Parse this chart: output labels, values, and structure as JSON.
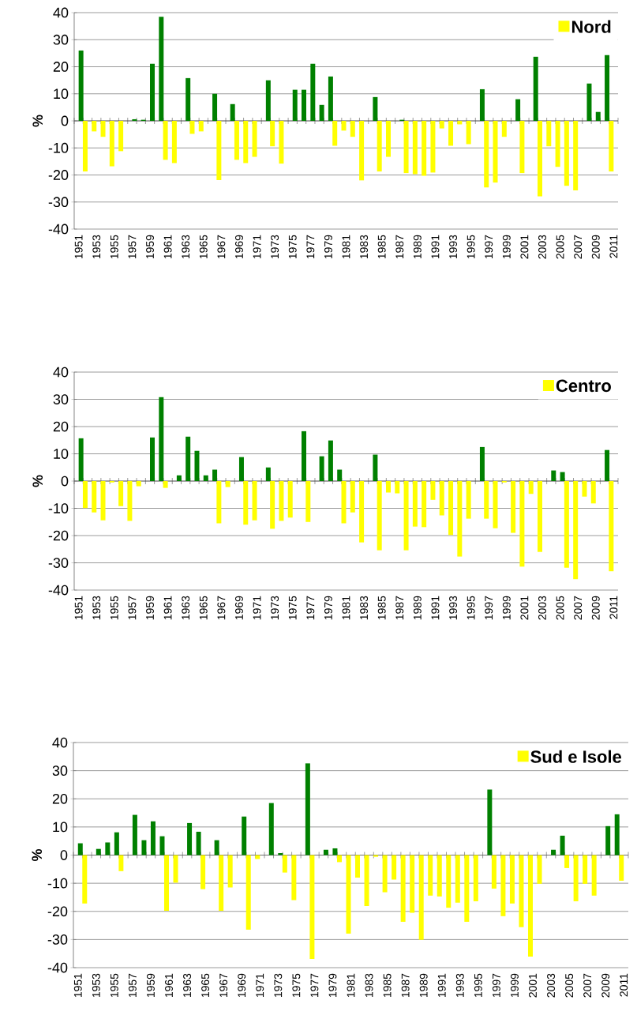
{
  "chart_data": [
    {
      "type": "bar",
      "ylabel": "%",
      "ylim": [
        -40,
        40
      ],
      "yticks": [
        -40,
        -30,
        -20,
        -10,
        0,
        10,
        20,
        30,
        40
      ],
      "grid": "y",
      "legend": "top right",
      "categories": [
        "1951",
        null,
        "1953",
        null,
        "1955",
        null,
        "1957",
        null,
        "1959",
        null,
        "1961",
        null,
        "1963",
        null,
        "1965",
        null,
        "1967",
        null,
        "1969",
        null,
        "1971",
        null,
        "1973",
        null,
        "1975",
        null,
        "1977",
        null,
        "1979",
        null,
        "1981",
        null,
        "1983",
        null,
        "1985",
        null,
        "1987",
        null,
        "1989",
        null,
        "1991",
        null,
        "1993",
        null,
        "1995",
        null,
        "1997",
        null,
        "1999",
        null,
        "2001",
        null,
        "2003",
        null,
        "2005",
        null,
        "2007",
        null,
        "2009",
        null,
        "2011"
      ],
      "series": [
        {
          "name": "Nord",
          "color": "#ffff00",
          "values": [
            null,
            -18.7,
            -3.9,
            -5.9,
            -16.8,
            -11.2,
            null,
            null,
            null,
            null,
            -14.4,
            -15.6,
            null,
            -4.8,
            -3.9,
            null,
            -21.9,
            null,
            -14.4,
            -15.6,
            -13.3,
            null,
            -9.4,
            -15.8,
            null,
            null,
            null,
            null,
            null,
            -9.2,
            -3.6,
            -5.9,
            -22.0,
            null,
            -18.7,
            -13.3,
            null,
            -19.3,
            -19.7,
            -20.3,
            -19.1,
            -2.8,
            -9.2,
            -1.3,
            -8.6,
            null,
            -24.6,
            -22.8,
            -5.9,
            null,
            -19.3,
            null,
            -27.9,
            -9.4,
            -17.0,
            -24.0,
            -25.7,
            null,
            null,
            null,
            -18.7
          ]
        },
        {
          "color": "#008000",
          "values": [
            26.0,
            null,
            null,
            null,
            null,
            null,
            0.6,
            0.4,
            21.1,
            38.5,
            null,
            null,
            15.8,
            null,
            null,
            10.0,
            null,
            6.2,
            null,
            null,
            null,
            15.0,
            null,
            null,
            11.5,
            11.5,
            21.1,
            5.9,
            16.4,
            null,
            null,
            null,
            null,
            8.8,
            null,
            null,
            0.4,
            null,
            null,
            null,
            null,
            null,
            null,
            null,
            null,
            11.7,
            null,
            null,
            null,
            8.0,
            null,
            23.7,
            null,
            null,
            null,
            null,
            null,
            13.8,
            3.3,
            24.3,
            null
          ]
        }
      ]
    },
    {
      "type": "bar",
      "ylabel": "%",
      "ylim": [
        -40,
        40
      ],
      "yticks": [
        -40,
        -30,
        -20,
        -10,
        0,
        10,
        20,
        30,
        40
      ],
      "grid": "y",
      "legend": "top right",
      "categories": [
        "1951",
        null,
        "1953",
        null,
        "1955",
        null,
        "1957",
        null,
        "1959",
        null,
        "1961",
        null,
        "1963",
        null,
        "1965",
        null,
        "1967",
        null,
        "1969",
        null,
        "1971",
        null,
        "1973",
        null,
        "1975",
        null,
        "1977",
        null,
        "1979",
        null,
        "1981",
        null,
        "1983",
        null,
        "1985",
        null,
        "1987",
        null,
        "1989",
        null,
        "1991",
        null,
        "1993",
        null,
        "1995",
        null,
        "1997",
        null,
        "1999",
        null,
        "2001",
        null,
        "2003",
        null,
        "2005",
        null,
        "2007",
        null,
        "2009",
        null,
        "2011"
      ],
      "series": [
        {
          "name": "Centro",
          "color": "#ffff00",
          "values": [
            null,
            -9.9,
            -11.5,
            -14.4,
            -0.5,
            -9.2,
            -14.6,
            -1.9,
            null,
            null,
            -2.5,
            null,
            null,
            null,
            null,
            null,
            -15.5,
            -2.2,
            null,
            -16.0,
            -14.4,
            null,
            -17.5,
            -14.6,
            -13.4,
            null,
            -15.0,
            null,
            null,
            null,
            -15.5,
            -11.5,
            -22.5,
            null,
            -25.4,
            -4.2,
            -4.5,
            -25.4,
            -16.7,
            -16.9,
            -6.9,
            -12.6,
            -19.8,
            -27.7,
            -13.8,
            null,
            -13.8,
            -17.3,
            -0.5,
            -19.0,
            -31.4,
            -4.7,
            -26.0,
            null,
            null,
            -31.8,
            -36.0,
            -5.7,
            -8.2,
            null,
            -33.1
          ]
        },
        {
          "color": "#008000",
          "values": [
            15.7,
            null,
            null,
            null,
            null,
            null,
            null,
            null,
            16.0,
            30.8,
            null,
            2.1,
            16.3,
            11.1,
            2.1,
            4.2,
            null,
            null,
            8.8,
            null,
            null,
            5.0,
            null,
            null,
            null,
            18.3,
            null,
            9.1,
            14.9,
            4.2,
            null,
            null,
            null,
            9.7,
            null,
            null,
            null,
            null,
            null,
            null,
            null,
            null,
            null,
            null,
            null,
            12.5,
            null,
            null,
            null,
            null,
            null,
            null,
            null,
            3.9,
            3.3,
            null,
            null,
            null,
            null,
            11.4,
            null
          ]
        }
      ]
    },
    {
      "type": "bar",
      "ylabel": "%",
      "ylim": [
        -40,
        40
      ],
      "yticks": [
        -40,
        -30,
        -20,
        -10,
        0,
        10,
        20,
        30,
        40
      ],
      "grid": "y",
      "legend": "top right",
      "categories": [
        "1951",
        null,
        "1953",
        null,
        "1955",
        null,
        "1957",
        null,
        "1959",
        null,
        "1961",
        null,
        "1963",
        null,
        "1965",
        null,
        "1967",
        null,
        "1969",
        null,
        "1971",
        null,
        "1973",
        null,
        "1975",
        null,
        "1977",
        null,
        "1979",
        null,
        "1981",
        null,
        "1983",
        null,
        "1985",
        null,
        "1987",
        null,
        "1989",
        null,
        "1991",
        null,
        "1993",
        null,
        "1995",
        null,
        "1997",
        null,
        "1999",
        null,
        "2001",
        null,
        "2003",
        null,
        "2005",
        null,
        "2007",
        null,
        "2009",
        null,
        "2011"
      ],
      "series": [
        {
          "name": "Sud e Isole",
          "color": "#ffff00",
          "values": [
            null,
            -17.2,
            null,
            null,
            null,
            -5.7,
            null,
            null,
            null,
            null,
            -19.8,
            -9.8,
            null,
            null,
            -12.1,
            null,
            -19.8,
            -11.5,
            null,
            -26.5,
            -1.4,
            null,
            null,
            -6.2,
            -16.0,
            null,
            -36.9,
            null,
            null,
            -2.5,
            -27.9,
            -8.0,
            -18.1,
            -0.6,
            -13.2,
            -8.7,
            -23.7,
            -20.5,
            -30.1,
            -14.4,
            -14.7,
            -18.7,
            -16.9,
            -23.7,
            -16.4,
            null,
            -11.9,
            -21.7,
            -17.2,
            -25.6,
            -36.1,
            -10.2,
            null,
            null,
            -4.6,
            -16.4,
            -10.2,
            -14.4,
            null,
            null,
            -9.1
          ]
        },
        {
          "color": "#008000",
          "values": [
            4.2,
            null,
            2.2,
            4.5,
            8.1,
            null,
            14.3,
            5.3,
            12.0,
            6.7,
            null,
            null,
            11.4,
            8.3,
            null,
            5.3,
            null,
            null,
            13.7,
            null,
            null,
            18.5,
            0.7,
            null,
            null,
            32.6,
            null,
            1.9,
            2.4,
            null,
            null,
            null,
            null,
            null,
            null,
            null,
            null,
            null,
            null,
            null,
            null,
            null,
            null,
            null,
            null,
            23.3,
            null,
            null,
            null,
            null,
            null,
            null,
            1.9,
            6.9,
            null,
            null,
            null,
            null,
            10.3,
            14.5,
            null
          ]
        }
      ]
    }
  ]
}
